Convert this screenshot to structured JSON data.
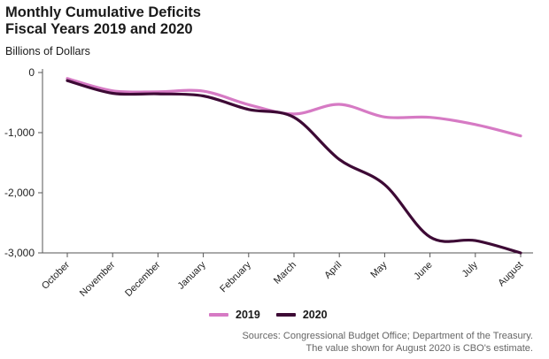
{
  "header": {
    "title_line1": "Monthly Cumulative Deficits",
    "title_line2": "Fiscal Years 2019 and 2020",
    "ylabel": "Billions of Dollars"
  },
  "footer": {
    "source_line1": "Sources: Congressional Budget Office; Department of the Treasury.",
    "source_line2": "The value shown for August 2020 is CBO's estimate."
  },
  "colors": {
    "series_2019": "#d67ac4",
    "series_2020": "#3d0a35",
    "axis": "#555555"
  },
  "chart_data": {
    "type": "line",
    "title": "Monthly Cumulative Deficits Fiscal Years 2019 and 2020",
    "ylabel": "Billions of Dollars",
    "categories": [
      "October",
      "November",
      "December",
      "January",
      "February",
      "March",
      "April",
      "May",
      "June",
      "July",
      "August"
    ],
    "ylim": [
      -3000,
      0
    ],
    "yticks": [
      0,
      -1000,
      -2000,
      -3000
    ],
    "ytick_labels": [
      "0",
      "-1,000",
      "-2,000",
      "-3,000"
    ],
    "grid": false,
    "legend": "bottom",
    "series": [
      {
        "name": "2019",
        "values": [
          -100,
          -305,
          -320,
          -310,
          -535,
          -690,
          -530,
          -740,
          -745,
          -865,
          -1055
        ]
      },
      {
        "name": "2020",
        "values": [
          -135,
          -345,
          -355,
          -390,
          -615,
          -745,
          -1445,
          -1865,
          -2735,
          -2795,
          -3000
        ]
      }
    ]
  }
}
